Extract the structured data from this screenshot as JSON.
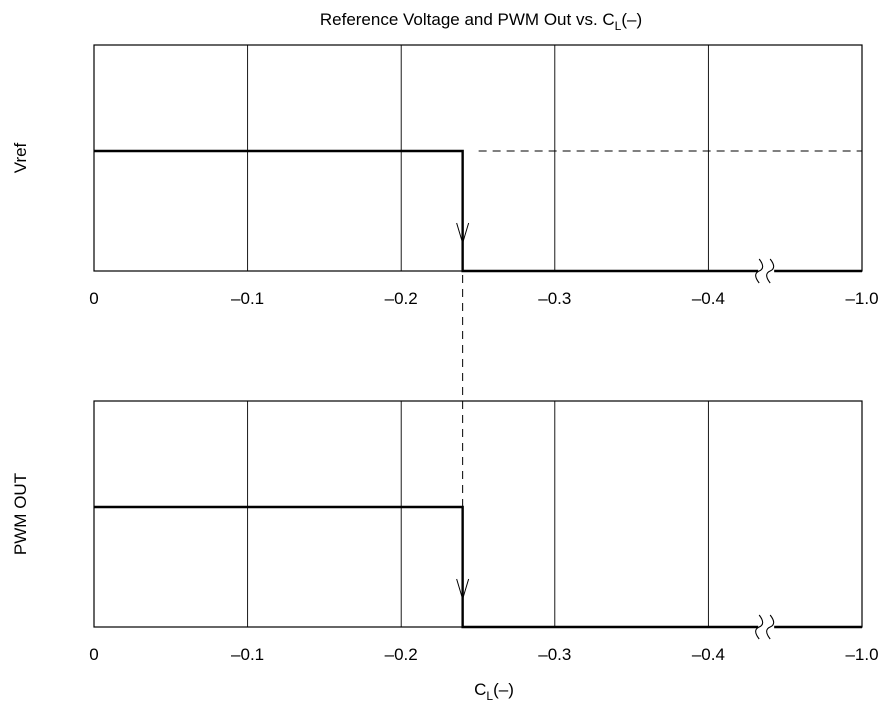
{
  "chart_data": [
    {
      "type": "line",
      "title": "Reference Voltage and PWM Out vs. C",
      "title_subscript": "L",
      "title_suffix": "(–)",
      "ylabel": "Vref",
      "x_ticks": [
        "0",
        "–0.1",
        "–0.2",
        "–0.3",
        "–0.4",
        "–1.0"
      ],
      "x_tick_values": [
        0,
        -0.1,
        -0.2,
        -0.3,
        -0.4,
        -1.0
      ],
      "x_axis_break_between": [
        -0.4,
        -1.0
      ],
      "grid": "vertical",
      "step_x": -0.24,
      "series": [
        {
          "x": [
            0,
            -0.24,
            -0.24,
            -1.0
          ],
          "y": [
            1,
            1,
            0,
            0
          ]
        }
      ],
      "dashed_reference_level": 1
    },
    {
      "type": "line",
      "xlabel": "C",
      "xlabel_subscript": "L",
      "xlabel_suffix": "(–)",
      "ylabel": "PWM OUT",
      "x_ticks": [
        "0",
        "–0.1",
        "–0.2",
        "–0.3",
        "–0.4",
        "–1.0"
      ],
      "x_tick_values": [
        0,
        -0.1,
        -0.2,
        -0.3,
        -0.4,
        -1.0
      ],
      "x_axis_break_between": [
        -0.4,
        -1.0
      ],
      "grid": "vertical",
      "step_x": -0.24,
      "series": [
        {
          "x": [
            0,
            -0.24,
            -0.24,
            -1.0
          ],
          "y": [
            1,
            1,
            0,
            0
          ]
        }
      ]
    }
  ]
}
